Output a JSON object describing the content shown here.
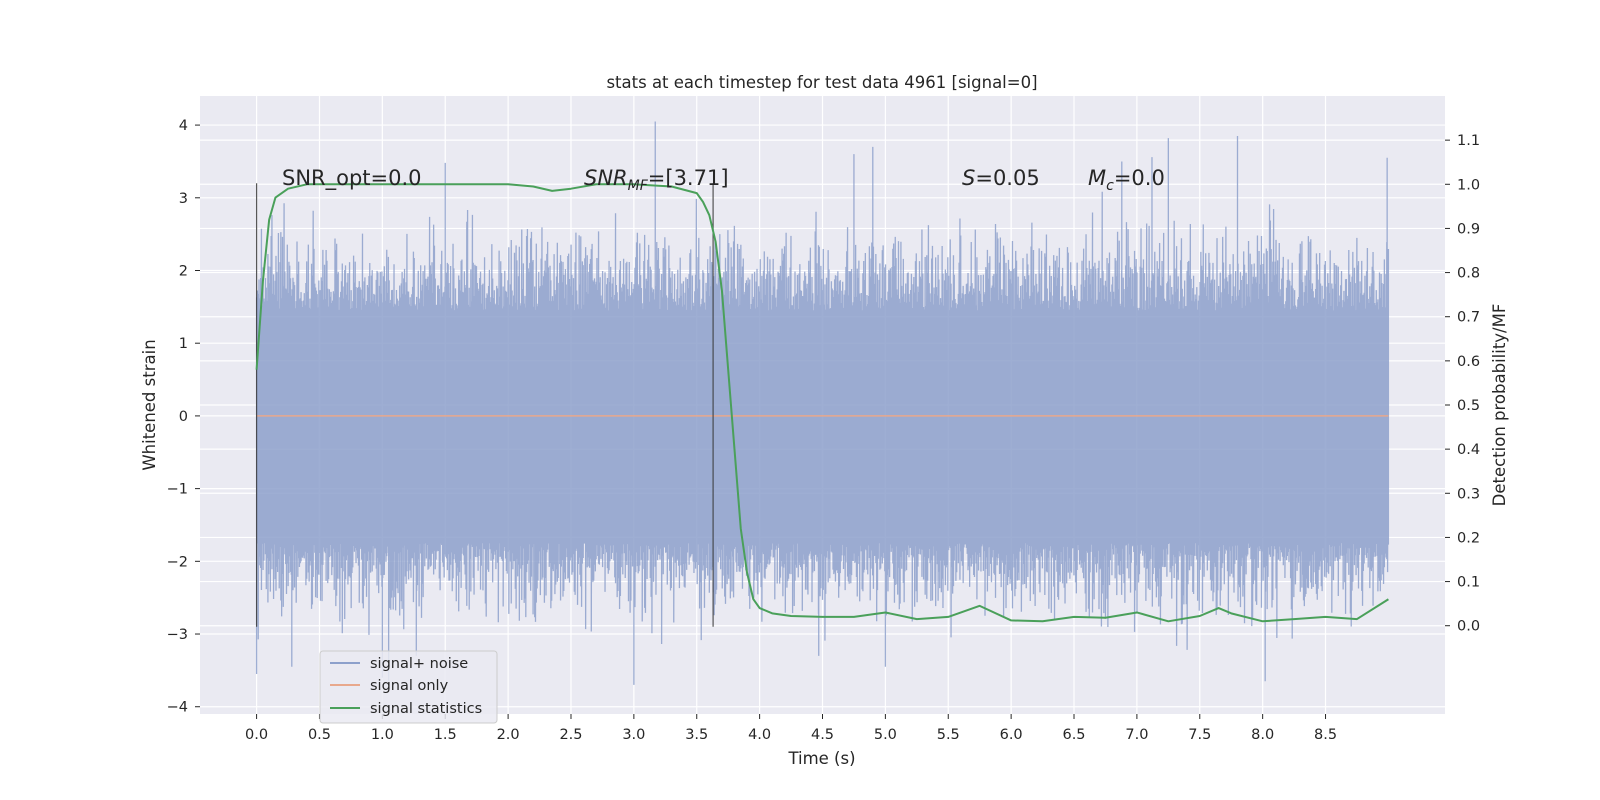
{
  "chart_data": {
    "type": "line",
    "title": "stats at each timestep for test data 4961 [signal=0]",
    "xlabel": "Time (s)",
    "ylabel_left": "Whitened strain",
    "ylabel_right": "Detection probability/MF",
    "xlim": [
      -0.45,
      9.45
    ],
    "ylim_left": [
      -4.1,
      4.4
    ],
    "ylim_right": [
      -0.2,
      1.2
    ],
    "x_ticks": [
      "0.0",
      "0.5",
      "1.0",
      "1.5",
      "2.0",
      "2.5",
      "3.0",
      "3.5",
      "4.0",
      "4.5",
      "5.0",
      "5.5",
      "6.0",
      "6.5",
      "7.0",
      "7.5",
      "8.0",
      "8.5"
    ],
    "y_ticks_left": [
      "4",
      "3",
      "2",
      "1",
      "0",
      "−1",
      "−2",
      "−3",
      "−4"
    ],
    "y_ticks_right": [
      "1.1",
      "1.0",
      "0.9",
      "0.8",
      "0.7",
      "0.6",
      "0.5",
      "0.4",
      "0.3",
      "0.2",
      "0.1",
      "0.0"
    ],
    "annotations": {
      "snr_opt": "SNR_opt=0.0",
      "snr_mf_sym": "SNR",
      "snr_mf_sub": "MF",
      "snr_mf_val": "=[3.71]",
      "s_sym": "S",
      "s_val": "=0.05",
      "mc_sym": "M",
      "mc_sub": "c",
      "mc_val": "=0.0"
    },
    "markers": [
      {
        "name": "start-marker",
        "x": 0.0,
        "y_range": [
          -2.9,
          3.2
        ]
      },
      {
        "name": "peak-marker",
        "x": 3.63,
        "y_range": [
          -2.9,
          3.2
        ]
      }
    ],
    "legend": {
      "position": "lower-left",
      "entries": [
        {
          "label": "signal+ noise",
          "color": "#8da0cb"
        },
        {
          "label": "signal only",
          "color": "#e8a88c"
        },
        {
          "label": "signal statistics",
          "color": "#4aa05a"
        }
      ]
    },
    "series": [
      {
        "name": "signal+ noise",
        "axis": "left",
        "color": "#8da0cb",
        "description": "whitened noise, roughly uniform band",
        "x_range": [
          0.0,
          9.0
        ],
        "band_mean_low": -1.75,
        "band_mean_high": 1.45,
        "extremes": [
          -3.7,
          4.05
        ]
      },
      {
        "name": "signal only",
        "axis": "left",
        "color": "#e8a88c",
        "x": [
          0.0,
          9.0
        ],
        "y": [
          0.0,
          0.0
        ]
      },
      {
        "name": "signal statistics",
        "axis": "right",
        "color": "#4aa05a",
        "x": [
          0.0,
          0.05,
          0.1,
          0.15,
          0.25,
          0.4,
          1.0,
          2.0,
          2.2,
          2.35,
          2.5,
          2.7,
          3.0,
          3.3,
          3.5,
          3.55,
          3.6,
          3.65,
          3.7,
          3.75,
          3.8,
          3.85,
          3.9,
          3.95,
          4.0,
          4.1,
          4.25,
          4.5,
          4.75,
          5.0,
          5.25,
          5.5,
          5.75,
          6.0,
          6.25,
          6.5,
          6.75,
          7.0,
          7.25,
          7.5,
          7.65,
          7.75,
          8.0,
          8.25,
          8.5,
          8.75,
          9.0
        ],
        "y": [
          0.58,
          0.78,
          0.92,
          0.97,
          0.99,
          1.0,
          1.0,
          1.0,
          0.995,
          0.985,
          0.99,
          1.0,
          1.0,
          0.995,
          0.98,
          0.96,
          0.93,
          0.87,
          0.76,
          0.58,
          0.4,
          0.22,
          0.12,
          0.06,
          0.04,
          0.028,
          0.022,
          0.02,
          0.02,
          0.03,
          0.015,
          0.02,
          0.045,
          0.012,
          0.01,
          0.02,
          0.018,
          0.03,
          0.01,
          0.022,
          0.04,
          0.028,
          0.01,
          0.015,
          0.02,
          0.015,
          0.06
        ]
      }
    ]
  }
}
